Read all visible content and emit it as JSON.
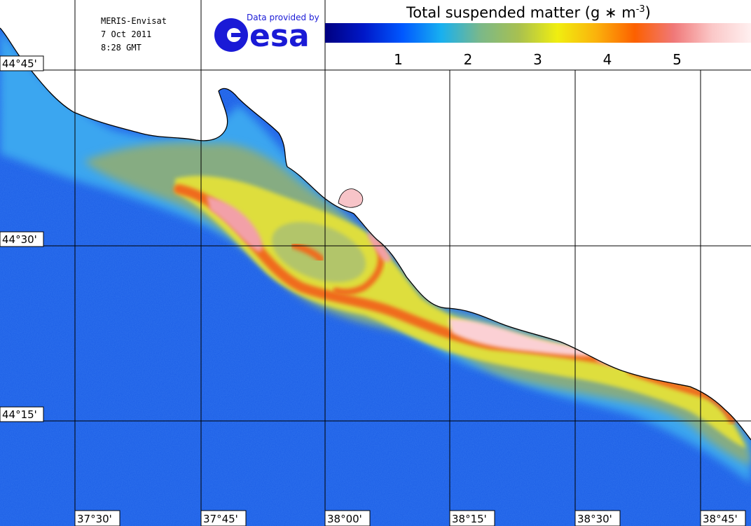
{
  "header": {
    "info_lines": [
      "MERIS-Envisat",
      "7 Oct 2011",
      "8:28 GMT"
    ],
    "credit": "Data provided by",
    "agency_logo_word": "esa"
  },
  "colorbar": {
    "title_prefix": "Total suspended matter (g ∗ m",
    "title_exponent": "-3",
    "title_suffix": ")",
    "tick_labels": [
      "1",
      "2",
      "3",
      "4",
      "5"
    ],
    "colors": [
      "#000080",
      "#0018c8",
      "#0058ff",
      "#18b0f0",
      "#7ab88a",
      "#a8c050",
      "#f0ee10",
      "#fbb20c",
      "#fc6000",
      "#f07878",
      "#fbc8c8",
      "#fff0f0"
    ]
  },
  "grid": {
    "latitude_labels": [
      "44°45'",
      "44°30'",
      "44°15'"
    ],
    "longitude_labels": [
      "37°30'",
      "37°45'",
      "38°00'",
      "38°15'",
      "38°30'",
      "38°45'"
    ]
  },
  "palette": {
    "land": "#ffffff",
    "deep_water": "#1a5ce6",
    "shelf_water": "#3aa6f0",
    "plume_green": "#86ac82",
    "plume_yellow": "#dede3e",
    "plume_orange": "#f06a1a",
    "plume_pink": "#f2a0a8",
    "coastline": "#000000"
  }
}
